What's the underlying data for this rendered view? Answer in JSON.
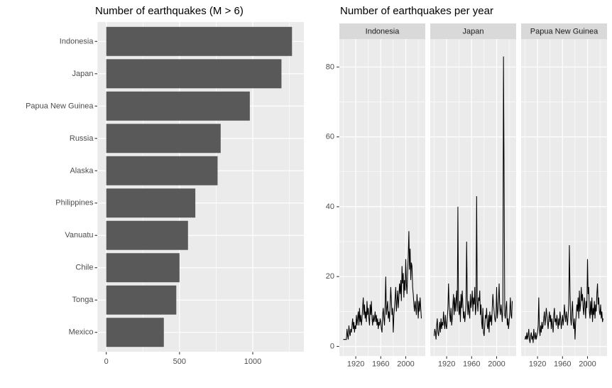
{
  "colors": {
    "panel_bg": "#EBEBEB",
    "grid": "#FFFFFF",
    "bar_fill": "#595959",
    "strip_bg": "#D9D9D9",
    "axis_text": "#4D4D4D",
    "strip_text": "#1A1A1A",
    "title_text": "#000000",
    "tick": "#333333",
    "line": "#000000"
  },
  "chart_data": [
    {
      "type": "bar",
      "orientation": "horizontal",
      "title": "Number of earthquakes (M > 6)",
      "categories": [
        "Indonesia",
        "Japan",
        "Papua New Guinea",
        "Russia",
        "Alaska",
        "Philippines",
        "Vanuatu",
        "Chile",
        "Tonga",
        "Mexico"
      ],
      "values": [
        1268,
        1196,
        980,
        781,
        760,
        608,
        558,
        500,
        478,
        393
      ],
      "xlabel": "",
      "ylabel": "",
      "x_ticks": [
        0,
        500,
        1000
      ],
      "x_tick_labels": [
        "0",
        "500",
        "1000"
      ],
      "x_minor": [
        250,
        750,
        1250
      ],
      "xlim": [
        -60,
        1349
      ],
      "grid": true,
      "legend": "none"
    },
    {
      "type": "line",
      "title": "Number of earthquakes per year",
      "facets": [
        "Indonesia",
        "Japan",
        "Papua New Guinea"
      ],
      "x_start_year": 1900,
      "x_end_year": 2025,
      "x_ticks": [
        1920,
        1960,
        2000
      ],
      "x_tick_labels": [
        "1920",
        "1960",
        "2000"
      ],
      "x_minor": [
        1900,
        1940,
        1980,
        2020
      ],
      "y_ticks": [
        0,
        20,
        40,
        60,
        80
      ],
      "y_tick_labels": [
        "0",
        "20",
        "40",
        "60",
        "80"
      ],
      "y_minor": [
        10,
        30,
        50,
        70
      ],
      "xlim": [
        1893.75,
        2031.25
      ],
      "ylim": [
        -3,
        88
      ],
      "grid": true,
      "legend": "none",
      "series": [
        {
          "name": "Indonesia",
          "values": [
            2,
            2,
            2,
            2,
            2,
            2,
            5,
            3,
            2,
            6,
            4,
            3,
            5,
            4,
            6,
            8,
            5,
            7,
            4,
            6,
            5,
            9,
            6,
            8,
            10,
            6,
            11,
            7,
            9,
            6,
            8,
            11,
            14,
            9,
            12,
            8,
            10,
            7,
            13,
            9,
            11,
            8,
            6,
            12,
            9,
            13,
            8,
            6,
            9,
            7,
            8,
            10,
            7,
            9,
            6,
            8,
            5,
            7,
            6,
            8,
            7,
            5,
            4,
            9,
            11,
            8,
            6,
            12,
            20,
            9,
            11,
            13,
            8,
            10,
            7,
            12,
            17,
            13,
            9,
            11,
            4,
            9,
            11,
            14,
            17,
            10,
            13,
            16,
            11,
            14,
            18,
            15,
            19,
            13,
            23,
            18,
            21,
            14,
            19,
            16,
            25,
            18,
            15,
            21,
            26,
            33,
            22,
            28,
            19,
            24,
            23,
            17,
            15,
            12,
            10,
            13,
            11,
            9,
            15,
            12,
            8,
            13,
            10,
            14,
            11,
            8
          ]
        },
        {
          "name": "Japan",
          "values": [
            3,
            5,
            4,
            2,
            6,
            8,
            4,
            3,
            5,
            7,
            4,
            8,
            5,
            7,
            6,
            10,
            7,
            5,
            9,
            6,
            5,
            8,
            11,
            18,
            12,
            9,
            7,
            11,
            6,
            8,
            12,
            15,
            9,
            14,
            10,
            13,
            16,
            10,
            40,
            12,
            9,
            13,
            7,
            15,
            11,
            16,
            12,
            8,
            10,
            7,
            9,
            12,
            30,
            14,
            9,
            13,
            10,
            8,
            15,
            11,
            13,
            16,
            10,
            14,
            12,
            17,
            9,
            11,
            43,
            13,
            10,
            14,
            13,
            16,
            9,
            12,
            7,
            5,
            11,
            4,
            3,
            6,
            9,
            8,
            11,
            6,
            5,
            9,
            4,
            10,
            7,
            9,
            6,
            11,
            15,
            12,
            10,
            8,
            7,
            9,
            17,
            8,
            10,
            13,
            18,
            11,
            9,
            12,
            10,
            7,
            12,
            83,
            46,
            9,
            8,
            11,
            13,
            6,
            8,
            5,
            7,
            10,
            14,
            9,
            8,
            13
          ]
        },
        {
          "name": "Papua New Guinea",
          "values": [
            2,
            3,
            2,
            4,
            2,
            3,
            5,
            2,
            1,
            3,
            4,
            2,
            3,
            1,
            5,
            3,
            2,
            4,
            2,
            3,
            4,
            6,
            14,
            5,
            3,
            6,
            4,
            7,
            5,
            6,
            8,
            10,
            6,
            8,
            11,
            9,
            7,
            5,
            8,
            10,
            7,
            9,
            5,
            8,
            6,
            4,
            9,
            11,
            7,
            8,
            6,
            9,
            7,
            5,
            8,
            6,
            10,
            8,
            5,
            7,
            9,
            6,
            8,
            12,
            9,
            7,
            10,
            8,
            6,
            9,
            12,
            29,
            16,
            8,
            6,
            10,
            13,
            7,
            5,
            8,
            2,
            7,
            9,
            12,
            10,
            14,
            8,
            16,
            10,
            12,
            17,
            13,
            15,
            11,
            9,
            14,
            12,
            8,
            13,
            11,
            25,
            15,
            17,
            10,
            8,
            13,
            9,
            14,
            7,
            11,
            9,
            13,
            8,
            12,
            10,
            15,
            18,
            12,
            14,
            10,
            9,
            12,
            8,
            10,
            7,
            8
          ]
        }
      ]
    }
  ]
}
